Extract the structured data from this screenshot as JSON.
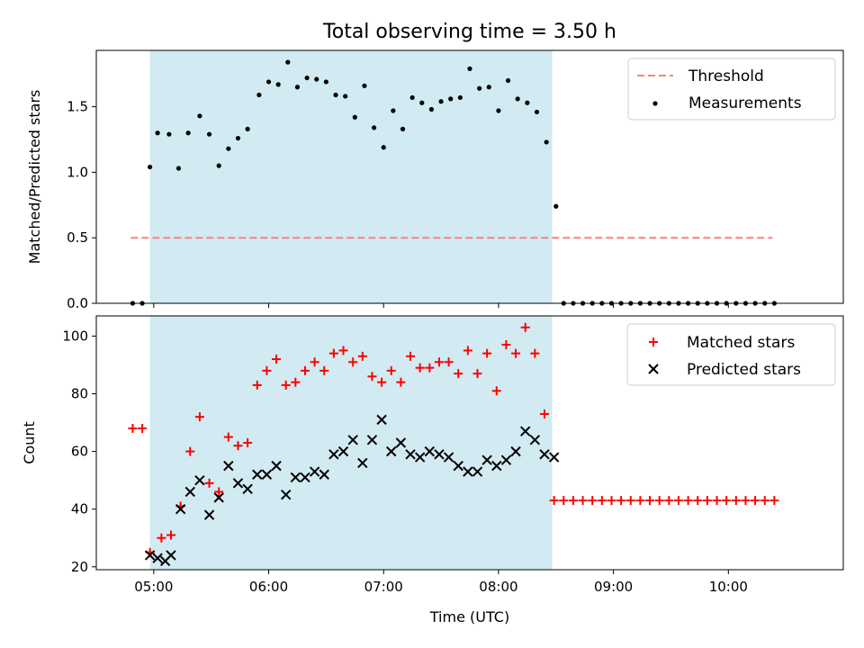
{
  "chart_data": [
    {
      "type": "scatter",
      "title": "Total observing time = 3.50 h",
      "ylabel": "Matched/Predicted stars",
      "xlabel": "",
      "xlim": [
        "04:30",
        "11:00"
      ],
      "ylim": [
        0,
        1.93
      ],
      "yticks": [
        "0.0",
        "0.5",
        "1.0",
        "1.5"
      ],
      "xticks": [
        "05:00",
        "06:00",
        "07:00",
        "08:00",
        "09:00",
        "10:00"
      ],
      "shaded_region": [
        "04:58",
        "08:28"
      ],
      "shaded_color": "#add8e6",
      "legend_position": "top-right",
      "threshold": {
        "name": "Threshold",
        "value": 0.5,
        "x_range": [
          "04:48",
          "10:23"
        ],
        "color": "#ff7f7f"
      },
      "series": [
        {
          "name": "Measurements",
          "color": "#000000",
          "points": [
            [
              "04:49",
              0.0
            ],
            [
              "04:54",
              0.0
            ],
            [
              "04:58",
              1.04
            ],
            [
              "05:02",
              1.3
            ],
            [
              "05:08",
              1.29
            ],
            [
              "05:13",
              1.03
            ],
            [
              "05:18",
              1.3
            ],
            [
              "05:24",
              1.43
            ],
            [
              "05:29",
              1.29
            ],
            [
              "05:34",
              1.05
            ],
            [
              "05:39",
              1.18
            ],
            [
              "05:44",
              1.26
            ],
            [
              "05:49",
              1.33
            ],
            [
              "05:55",
              1.59
            ],
            [
              "06:00",
              1.69
            ],
            [
              "06:05",
              1.67
            ],
            [
              "06:10",
              1.84
            ],
            [
              "06:15",
              1.65
            ],
            [
              "06:20",
              1.72
            ],
            [
              "06:25",
              1.71
            ],
            [
              "06:30",
              1.69
            ],
            [
              "06:35",
              1.59
            ],
            [
              "06:40",
              1.58
            ],
            [
              "06:45",
              1.42
            ],
            [
              "06:50",
              1.66
            ],
            [
              "06:55",
              1.34
            ],
            [
              "07:00",
              1.19
            ],
            [
              "07:05",
              1.47
            ],
            [
              "07:10",
              1.33
            ],
            [
              "07:15",
              1.57
            ],
            [
              "07:20",
              1.53
            ],
            [
              "07:25",
              1.48
            ],
            [
              "07:30",
              1.54
            ],
            [
              "07:35",
              1.56
            ],
            [
              "07:40",
              1.57
            ],
            [
              "07:45",
              1.79
            ],
            [
              "07:50",
              1.64
            ],
            [
              "07:55",
              1.65
            ],
            [
              "08:00",
              1.47
            ],
            [
              "08:05",
              1.7
            ],
            [
              "08:10",
              1.56
            ],
            [
              "08:15",
              1.53
            ],
            [
              "08:20",
              1.46
            ],
            [
              "08:25",
              1.23
            ],
            [
              "08:30",
              0.74
            ],
            [
              "08:34",
              0.0
            ],
            [
              "08:39",
              0.0
            ],
            [
              "08:44",
              0.0
            ],
            [
              "08:49",
              0.0
            ],
            [
              "08:54",
              0.0
            ],
            [
              "08:59",
              0.0
            ],
            [
              "09:04",
              0.0
            ],
            [
              "09:09",
              0.0
            ],
            [
              "09:14",
              0.0
            ],
            [
              "09:19",
              0.0
            ],
            [
              "09:24",
              0.0
            ],
            [
              "09:29",
              0.0
            ],
            [
              "09:34",
              0.0
            ],
            [
              "09:39",
              0.0
            ],
            [
              "09:44",
              0.0
            ],
            [
              "09:49",
              0.0
            ],
            [
              "09:54",
              0.0
            ],
            [
              "09:59",
              0.0
            ],
            [
              "10:04",
              0.0
            ],
            [
              "10:09",
              0.0
            ],
            [
              "10:14",
              0.0
            ],
            [
              "10:19",
              0.0
            ],
            [
              "10:24",
              0.0
            ]
          ]
        }
      ]
    },
    {
      "type": "scatter",
      "title": "",
      "ylabel": "Count",
      "xlabel": "Time (UTC)",
      "xlim": [
        "04:30",
        "11:00"
      ],
      "ylim": [
        19,
        107
      ],
      "yticks": [
        "20",
        "40",
        "60",
        "80",
        "100"
      ],
      "xticks": [
        "05:00",
        "06:00",
        "07:00",
        "08:00",
        "09:00",
        "10:00"
      ],
      "shaded_region": [
        "04:58",
        "08:28"
      ],
      "shaded_color": "#add8e6",
      "legend_position": "top-right",
      "series": [
        {
          "name": "Matched stars",
          "color": "#ff0000",
          "marker": "plus",
          "points": [
            [
              "04:49",
              68
            ],
            [
              "04:54",
              68
            ],
            [
              "04:58",
              25
            ],
            [
              "05:04",
              30
            ],
            [
              "05:09",
              31
            ],
            [
              "05:14",
              41
            ],
            [
              "05:19",
              60
            ],
            [
              "05:24",
              72
            ],
            [
              "05:29",
              49
            ],
            [
              "05:34",
              46
            ],
            [
              "05:39",
              65
            ],
            [
              "05:44",
              62
            ],
            [
              "05:49",
              63
            ],
            [
              "05:54",
              83
            ],
            [
              "05:59",
              88
            ],
            [
              "06:04",
              92
            ],
            [
              "06:09",
              83
            ],
            [
              "06:14",
              84
            ],
            [
              "06:19",
              88
            ],
            [
              "06:24",
              91
            ],
            [
              "06:29",
              88
            ],
            [
              "06:34",
              94
            ],
            [
              "06:39",
              95
            ],
            [
              "06:44",
              91
            ],
            [
              "06:49",
              93
            ],
            [
              "06:54",
              86
            ],
            [
              "06:59",
              84
            ],
            [
              "07:04",
              88
            ],
            [
              "07:09",
              84
            ],
            [
              "07:14",
              93
            ],
            [
              "07:19",
              89
            ],
            [
              "07:24",
              89
            ],
            [
              "07:29",
              91
            ],
            [
              "07:34",
              91
            ],
            [
              "07:39",
              87
            ],
            [
              "07:44",
              95
            ],
            [
              "07:49",
              87
            ],
            [
              "07:54",
              94
            ],
            [
              "07:59",
              81
            ],
            [
              "08:04",
              97
            ],
            [
              "08:09",
              94
            ],
            [
              "08:14",
              103
            ],
            [
              "08:19",
              94
            ],
            [
              "08:24",
              73
            ],
            [
              "08:29",
              43
            ],
            [
              "08:34",
              43
            ],
            [
              "08:39",
              43
            ],
            [
              "08:44",
              43
            ],
            [
              "08:49",
              43
            ],
            [
              "08:54",
              43
            ],
            [
              "08:59",
              43
            ],
            [
              "09:04",
              43
            ],
            [
              "09:09",
              43
            ],
            [
              "09:14",
              43
            ],
            [
              "09:19",
              43
            ],
            [
              "09:24",
              43
            ],
            [
              "09:29",
              43
            ],
            [
              "09:34",
              43
            ],
            [
              "09:39",
              43
            ],
            [
              "09:44",
              43
            ],
            [
              "09:49",
              43
            ],
            [
              "09:54",
              43
            ],
            [
              "09:59",
              43
            ],
            [
              "10:04",
              43
            ],
            [
              "10:09",
              43
            ],
            [
              "10:14",
              43
            ],
            [
              "10:19",
              43
            ],
            [
              "10:24",
              43
            ]
          ]
        },
        {
          "name": "Predicted stars",
          "color": "#000000",
          "marker": "x",
          "points": [
            [
              "04:58",
              24
            ],
            [
              "05:02",
              23
            ],
            [
              "05:06",
              22
            ],
            [
              "05:09",
              24
            ],
            [
              "05:14",
              40
            ],
            [
              "05:19",
              46
            ],
            [
              "05:24",
              50
            ],
            [
              "05:29",
              38
            ],
            [
              "05:34",
              44
            ],
            [
              "05:39",
              55
            ],
            [
              "05:44",
              49
            ],
            [
              "05:49",
              47
            ],
            [
              "05:54",
              52
            ],
            [
              "05:59",
              52
            ],
            [
              "06:04",
              55
            ],
            [
              "06:09",
              45
            ],
            [
              "06:14",
              51
            ],
            [
              "06:19",
              51
            ],
            [
              "06:24",
              53
            ],
            [
              "06:29",
              52
            ],
            [
              "06:34",
              59
            ],
            [
              "06:39",
              60
            ],
            [
              "06:44",
              64
            ],
            [
              "06:49",
              56
            ],
            [
              "06:54",
              64
            ],
            [
              "06:59",
              71
            ],
            [
              "07:04",
              60
            ],
            [
              "07:09",
              63
            ],
            [
              "07:14",
              59
            ],
            [
              "07:19",
              58
            ],
            [
              "07:24",
              60
            ],
            [
              "07:29",
              59
            ],
            [
              "07:34",
              58
            ],
            [
              "07:39",
              55
            ],
            [
              "07:44",
              53
            ],
            [
              "07:49",
              53
            ],
            [
              "07:54",
              57
            ],
            [
              "07:59",
              55
            ],
            [
              "08:04",
              57
            ],
            [
              "08:09",
              60
            ],
            [
              "08:14",
              67
            ],
            [
              "08:19",
              64
            ],
            [
              "08:24",
              59
            ],
            [
              "08:29",
              58
            ]
          ]
        }
      ]
    }
  ]
}
